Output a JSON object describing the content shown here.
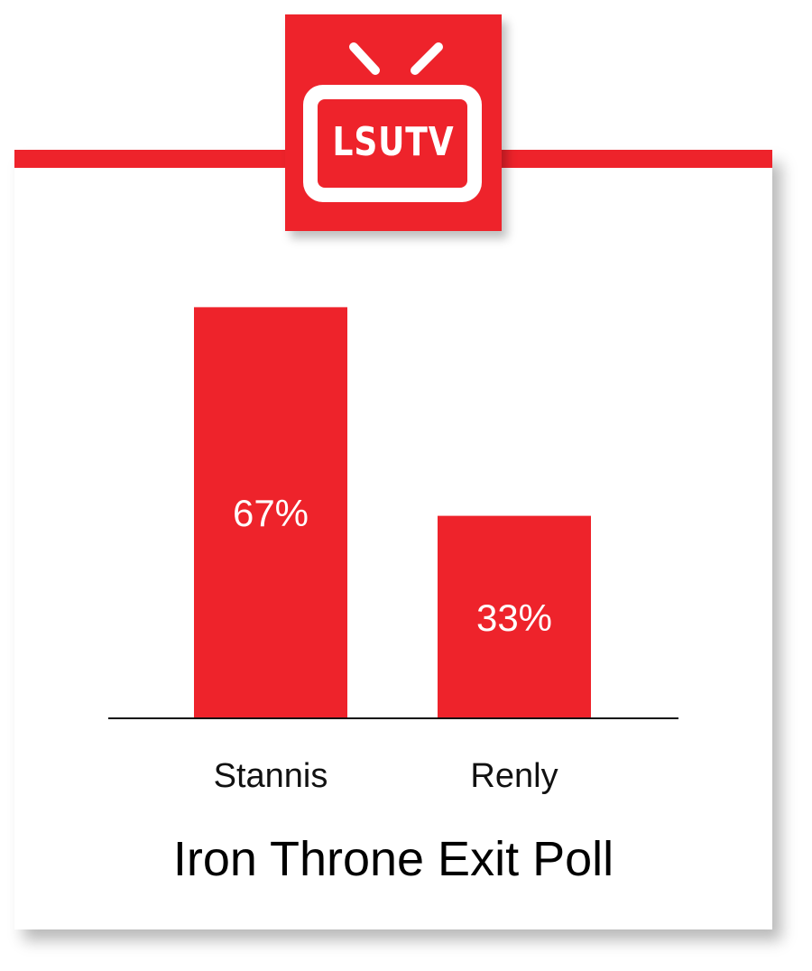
{
  "logo": {
    "text": "LSUTV",
    "color": "#ee232b"
  },
  "chart_data": {
    "type": "bar",
    "title": "Iron Throne Exit Poll",
    "categories": [
      "Stannis",
      "Renly"
    ],
    "values": [
      67,
      33
    ],
    "value_labels": [
      "67%",
      "33%"
    ],
    "unit": "%",
    "ylim": [
      0,
      100
    ],
    "grid": false,
    "bar_color": "#ee232b",
    "label_color": "#ffffff"
  }
}
